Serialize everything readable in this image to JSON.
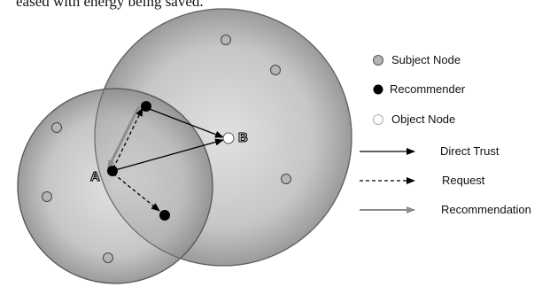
{
  "top_text": "eased with energy being saved.",
  "nodes": {
    "a_label": "A",
    "b_label": "B"
  },
  "legend": {
    "subject_node": "Subject Node",
    "recommender": "Recommender",
    "object_node": "Object Node",
    "direct_trust": "Direct Trust",
    "request": "Request",
    "recommendation": "Recommendation"
  },
  "colors": {
    "circle_fill": "#bdbdbd",
    "subject_node": "#b5b5b5",
    "recommender": "#000000",
    "object_node": "#ffffff",
    "recommendation_arrow": "#8c8c8c"
  }
}
